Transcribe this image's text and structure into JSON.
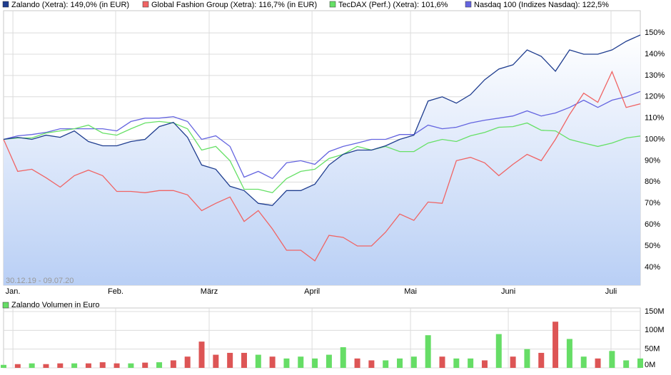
{
  "chart_data": [
    {
      "type": "line",
      "annotation": "30.12.19 - 09.07.20",
      "xlim": [
        0,
        45
      ],
      "xticks": [
        {
          "value": 0.66,
          "label": "Jan."
        },
        {
          "value": 7.92,
          "label": "Feb."
        },
        {
          "value": 14.53,
          "label": "März"
        },
        {
          "value": 21.8,
          "label": "April"
        },
        {
          "value": 28.76,
          "label": "Mai"
        },
        {
          "value": 35.67,
          "label": "Juni"
        },
        {
          "value": 42.93,
          "label": "Juli"
        }
      ],
      "ylim": [
        31.6,
        160.4
      ],
      "yticks": [
        {
          "value": 40,
          "label": "40%"
        },
        {
          "value": 50,
          "label": "50%"
        },
        {
          "value": 60,
          "label": "60%"
        },
        {
          "value": 70,
          "label": "70%"
        },
        {
          "value": 80,
          "label": "80%"
        },
        {
          "value": 90,
          "label": "90%"
        },
        {
          "value": 100,
          "label": "100%"
        },
        {
          "value": 110,
          "label": "110%"
        },
        {
          "value": 120,
          "label": "120%"
        },
        {
          "value": 130,
          "label": "130%"
        },
        {
          "value": 140,
          "label": "140%"
        },
        {
          "value": 150,
          "label": "150%"
        }
      ],
      "grid": true,
      "series": [
        {
          "name": "Zalando (Xetra): 149,0% (in EUR)",
          "color": "#1f3d8f",
          "fill": true,
          "values": [
            100,
            101,
            100,
            102,
            101,
            104,
            99,
            97,
            97,
            99,
            100,
            106,
            108,
            101,
            88,
            86,
            78,
            76,
            70,
            69,
            76,
            76,
            79,
            88,
            93,
            95,
            95,
            97,
            100,
            102,
            118,
            120,
            117,
            121,
            128,
            133,
            135,
            142,
            139,
            132,
            142,
            140,
            140,
            142,
            146,
            149
          ]
        },
        {
          "name": "Global Fashion Group (Xetra): 116,7% (in EUR)",
          "color": "#f06464",
          "values": [
            100,
            85,
            86,
            82,
            77.6,
            83,
            85.6,
            83,
            75.6,
            75.6,
            75,
            76,
            76,
            74,
            66.6,
            70,
            73,
            61.5,
            66.6,
            58,
            48,
            48,
            43,
            55,
            54,
            50,
            50,
            56.5,
            65,
            62,
            70.6,
            70,
            90,
            91.6,
            89,
            83,
            88.3,
            93,
            90,
            100,
            111.7,
            121.7,
            117.4,
            131.8,
            115,
            116.7
          ]
        },
        {
          "name": "TecDAX (Perf.) (Xetra): 101,6%",
          "color": "#66e066",
          "values": [
            100,
            100.7,
            100.7,
            103,
            104,
            105,
            106.7,
            103,
            102,
            105,
            107.7,
            108.4,
            107.7,
            105,
            95,
            96.7,
            90,
            76.6,
            76.6,
            75,
            81.6,
            85,
            86,
            91,
            93,
            96.7,
            95,
            96.7,
            94.3,
            94.3,
            98.3,
            100,
            99,
            101.7,
            103.3,
            105.7,
            106,
            107.7,
            104.3,
            104,
            100,
            98.3,
            96.7,
            98.3,
            100.7,
            101.6
          ]
        },
        {
          "name": "Nasdaq 100 (Indizes Nasdaq): 122,5%",
          "color": "#6464e0",
          "values": [
            100,
            101.7,
            102.3,
            103.3,
            105,
            105,
            105,
            105,
            104,
            108.4,
            110,
            110,
            110.7,
            108.4,
            100,
            101.7,
            96.7,
            82.3,
            85,
            81.6,
            89,
            90,
            88.3,
            94.3,
            96.7,
            98.3,
            100,
            100,
            102.3,
            102.3,
            106.7,
            105,
            105.7,
            107.7,
            109,
            110,
            111,
            113.4,
            111,
            112.4,
            115,
            118.4,
            115,
            118.4,
            120,
            122.5
          ]
        }
      ]
    },
    {
      "type": "bar",
      "ylim": [
        0,
        150
      ],
      "yticks": [
        {
          "value": 0,
          "label": "0M"
        },
        {
          "value": 50,
          "label": "50M"
        },
        {
          "value": 100,
          "label": "100M"
        },
        {
          "value": 150,
          "label": "150M"
        }
      ],
      "grid": true,
      "series": [
        {
          "name": "Zalando Volumen in Euro",
          "color": "#66dd66",
          "values": [
            8,
            10,
            12,
            10,
            12,
            12,
            12,
            15,
            12,
            12,
            14,
            15,
            20,
            30,
            70,
            35,
            40,
            40,
            35,
            30,
            25,
            30,
            25,
            35,
            55,
            25,
            20,
            20,
            25,
            30,
            87,
            30,
            25,
            25,
            20,
            90,
            30,
            50,
            40,
            123,
            77,
            30,
            25,
            45,
            20,
            25
          ],
          "colors": [
            "#66dd66",
            "#dd5555",
            "#66dd66",
            "#dd5555",
            "#dd5555",
            "#66dd66",
            "#dd5555",
            "#dd5555",
            "#dd5555",
            "#66dd66",
            "#dd5555",
            "#66dd66",
            "#dd5555",
            "#dd5555",
            "#dd5555",
            "#dd5555",
            "#dd5555",
            "#dd5555",
            "#66dd66",
            "#dd5555",
            "#66dd66",
            "#66dd66",
            "#66dd66",
            "#66dd66",
            "#66dd66",
            "#dd5555",
            "#dd5555",
            "#66dd66",
            "#66dd66",
            "#66dd66",
            "#66dd66",
            "#dd5555",
            "#66dd66",
            "#66dd66",
            "#dd5555",
            "#66dd66",
            "#dd5555",
            "#66dd66",
            "#dd5555",
            "#dd5555",
            "#66dd66",
            "#66dd66",
            "#dd5555",
            "#66dd66",
            "#66dd66",
            "#66dd66"
          ]
        }
      ]
    }
  ]
}
